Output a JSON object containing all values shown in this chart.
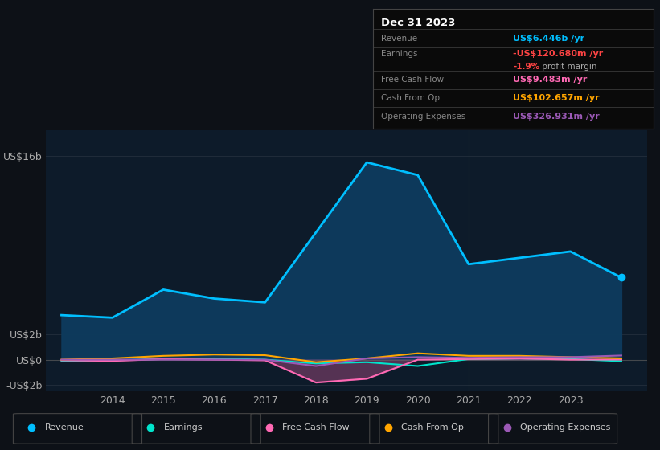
{
  "bg_color": "#0d1117",
  "chart_bg": "#0d1b2a",
  "years": [
    2013,
    2014,
    2015,
    2016,
    2017,
    2018,
    2019,
    2020,
    2021,
    2022,
    2023,
    2024
  ],
  "revenue": [
    3.5,
    3.3,
    5.5,
    4.8,
    4.5,
    10.0,
    15.5,
    14.5,
    7.5,
    8.0,
    8.5,
    6.446
  ],
  "earnings": [
    -0.1,
    -0.05,
    0.05,
    0.1,
    0.0,
    -0.3,
    -0.2,
    -0.5,
    0.05,
    0.1,
    0.05,
    -0.12
  ],
  "free_cash_flow": [
    -0.05,
    -0.1,
    0.05,
    0.0,
    -0.05,
    -1.8,
    -1.5,
    0.0,
    0.05,
    0.1,
    0.0,
    0.009
  ],
  "cash_from_op": [
    0.0,
    0.1,
    0.3,
    0.4,
    0.35,
    -0.2,
    0.1,
    0.5,
    0.3,
    0.3,
    0.2,
    0.103
  ],
  "operating_expenses": [
    0.0,
    0.0,
    0.0,
    0.0,
    0.0,
    -0.5,
    0.1,
    0.2,
    0.15,
    0.2,
    0.2,
    0.327
  ],
  "revenue_color": "#00bfff",
  "earnings_color": "#00e5cc",
  "free_cash_flow_color": "#ff69b4",
  "cash_from_op_color": "#ffa500",
  "operating_expenses_color": "#9b59b6",
  "ylim": [
    -2.5,
    18.0
  ],
  "xticks": [
    2014,
    2015,
    2016,
    2017,
    2018,
    2019,
    2020,
    2021,
    2022,
    2023
  ],
  "legend_items": [
    {
      "label": "Revenue",
      "color": "#00bfff"
    },
    {
      "label": "Earnings",
      "color": "#00e5cc"
    },
    {
      "label": "Free Cash Flow",
      "color": "#ff69b4"
    },
    {
      "label": "Cash From Op",
      "color": "#ffa500"
    },
    {
      "label": "Operating Expenses",
      "color": "#9b59b6"
    }
  ]
}
